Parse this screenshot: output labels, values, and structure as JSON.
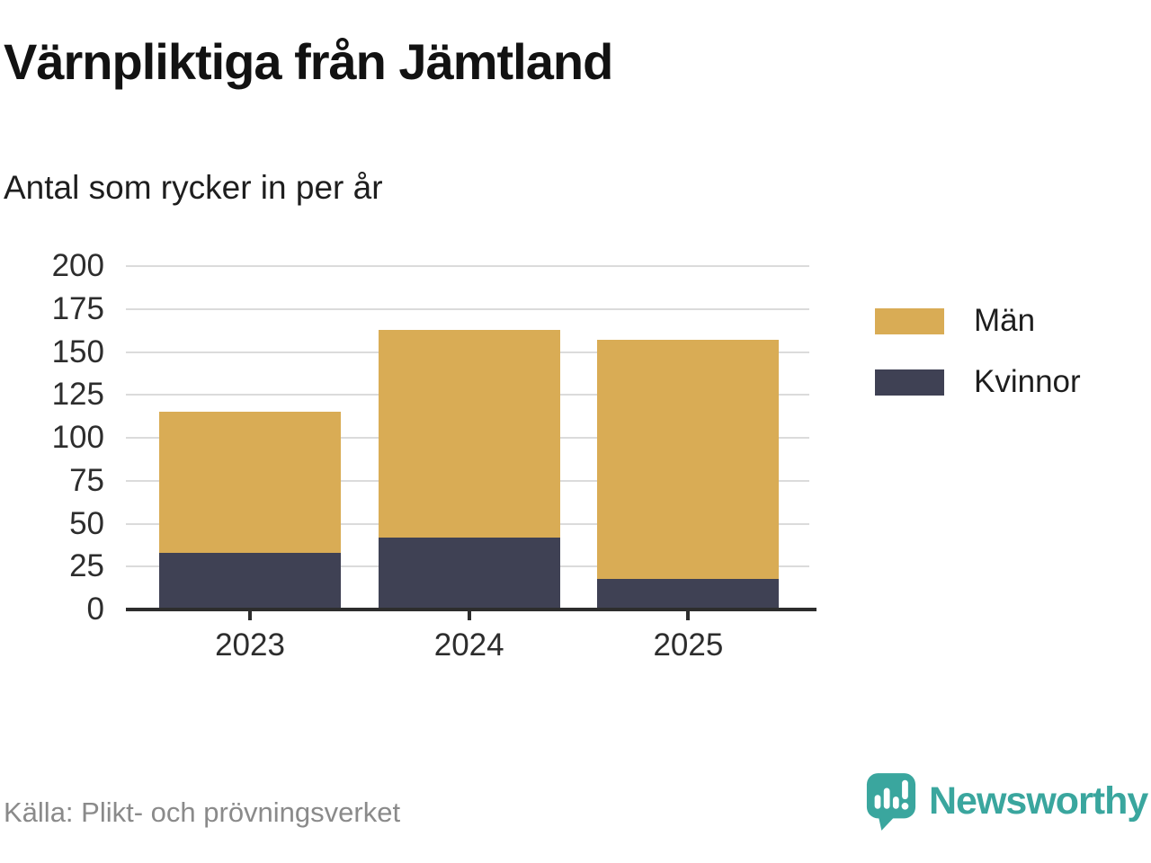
{
  "header": {
    "title": "Värnpliktiga från Jämtland",
    "subtitle": "Antal som rycker in per år"
  },
  "footer": {
    "source": "Källa: Plikt- och prövningsverket",
    "brand": "Newsworthy"
  },
  "colors": {
    "men": "#d9ac55",
    "women": "#3f4154",
    "grid": "#dbdbdb",
    "axis": "#2d2d2d",
    "brand_teal": "#3aa69e"
  },
  "chart_data": {
    "type": "bar",
    "stacked": true,
    "title": "Värnpliktiga från Jämtland",
    "subtitle": "Antal som rycker in per år",
    "categories": [
      "2023",
      "2024",
      "2025"
    ],
    "series": [
      {
        "name": "Kvinnor",
        "color": "#3f4154",
        "values": [
          33,
          42,
          18
        ]
      },
      {
        "name": "Män",
        "color": "#d9ac55",
        "values": [
          82,
          121,
          139
        ]
      }
    ],
    "totals": [
      115,
      163,
      157
    ],
    "xlabel": "",
    "ylabel": "",
    "ylim": [
      0,
      200
    ],
    "yticks": [
      0,
      25,
      50,
      75,
      100,
      125,
      150,
      175,
      200
    ],
    "grid": true,
    "legend_position": "right",
    "legend_order": [
      "Män",
      "Kvinnor"
    ]
  }
}
